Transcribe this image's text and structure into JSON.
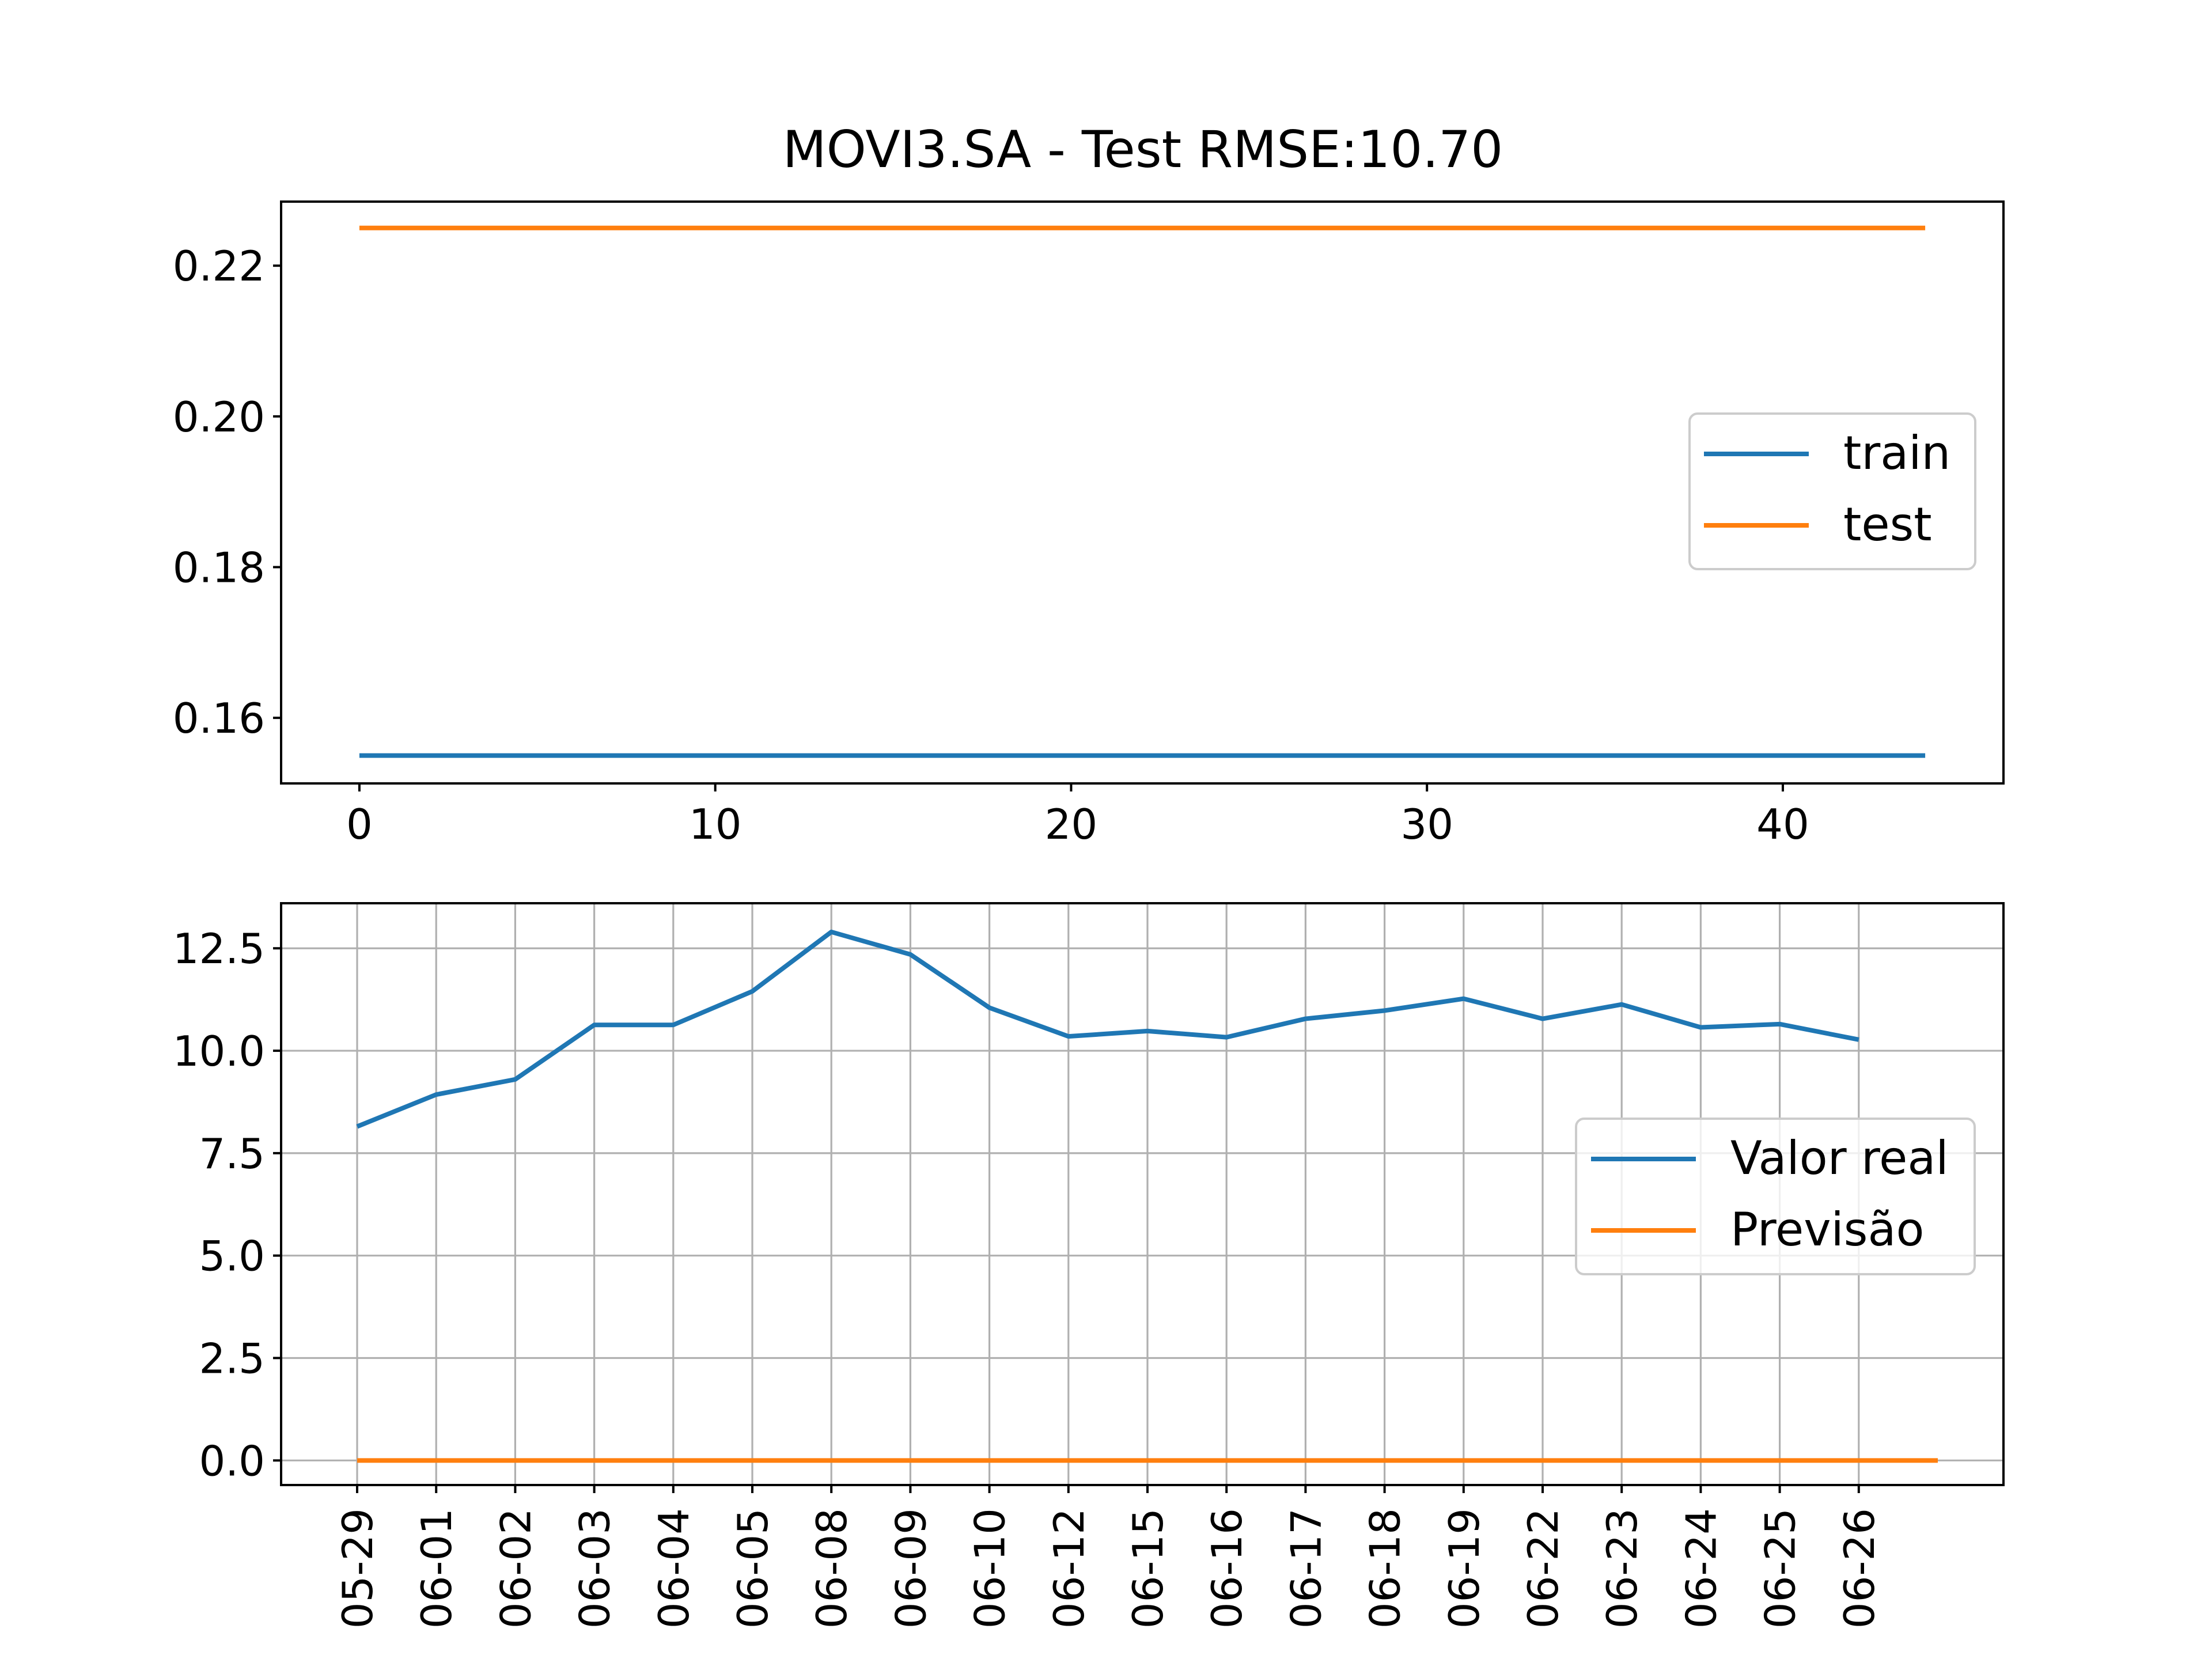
{
  "chart_data": [
    {
      "type": "line",
      "title": "MOVI3.SA - Test RMSE:10.70",
      "xlabel": "",
      "ylabel": "",
      "xlim": [
        -2.2,
        46.2
      ],
      "ylim": [
        0.1513,
        0.2285
      ],
      "x_ticks": [
        0,
        10,
        20,
        30,
        40
      ],
      "y_ticks": [
        0.16,
        0.18,
        0.2,
        0.22
      ],
      "y_tick_labels": [
        "0.16",
        "0.18",
        "0.20",
        "0.22"
      ],
      "grid": false,
      "legend": "center-right",
      "series": [
        {
          "name": "train",
          "color": "#1f77b4",
          "x_range": [
            0,
            44
          ],
          "value": 0.155
        },
        {
          "name": "test",
          "color": "#ff7f0e",
          "x_range": [
            0,
            44
          ],
          "value": 0.225
        }
      ]
    },
    {
      "type": "line",
      "title": "",
      "xlabel": "",
      "ylabel": "",
      "ylim": [
        -0.6,
        13.6
      ],
      "y_ticks": [
        0.0,
        2.5,
        5.0,
        7.5,
        10.0,
        12.5
      ],
      "y_tick_labels": [
        "0.0",
        "2.5",
        "5.0",
        "7.5",
        "10.0",
        "12.5"
      ],
      "categories": [
        "05-29",
        "06-01",
        "06-02",
        "06-03",
        "06-04",
        "06-05",
        "06-08",
        "06-09",
        "06-10",
        "06-12",
        "06-15",
        "06-16",
        "06-17",
        "06-18",
        "06-19",
        "06-22",
        "06-23",
        "06-24",
        "06-25",
        "06-26"
      ],
      "grid": true,
      "legend": "center-right",
      "series": [
        {
          "name": "Valor real",
          "color": "#1f77b4",
          "values": [
            8.15,
            8.93,
            9.3,
            10.63,
            10.63,
            11.45,
            12.9,
            12.35,
            11.05,
            10.35,
            10.48,
            10.33,
            10.78,
            10.98,
            11.27,
            10.78,
            11.13,
            10.57,
            10.65,
            10.27
          ]
        },
        {
          "name": "Previsão",
          "color": "#ff7f0e",
          "x_index_range": [
            0,
            20
          ],
          "value": 0.0
        }
      ]
    }
  ]
}
